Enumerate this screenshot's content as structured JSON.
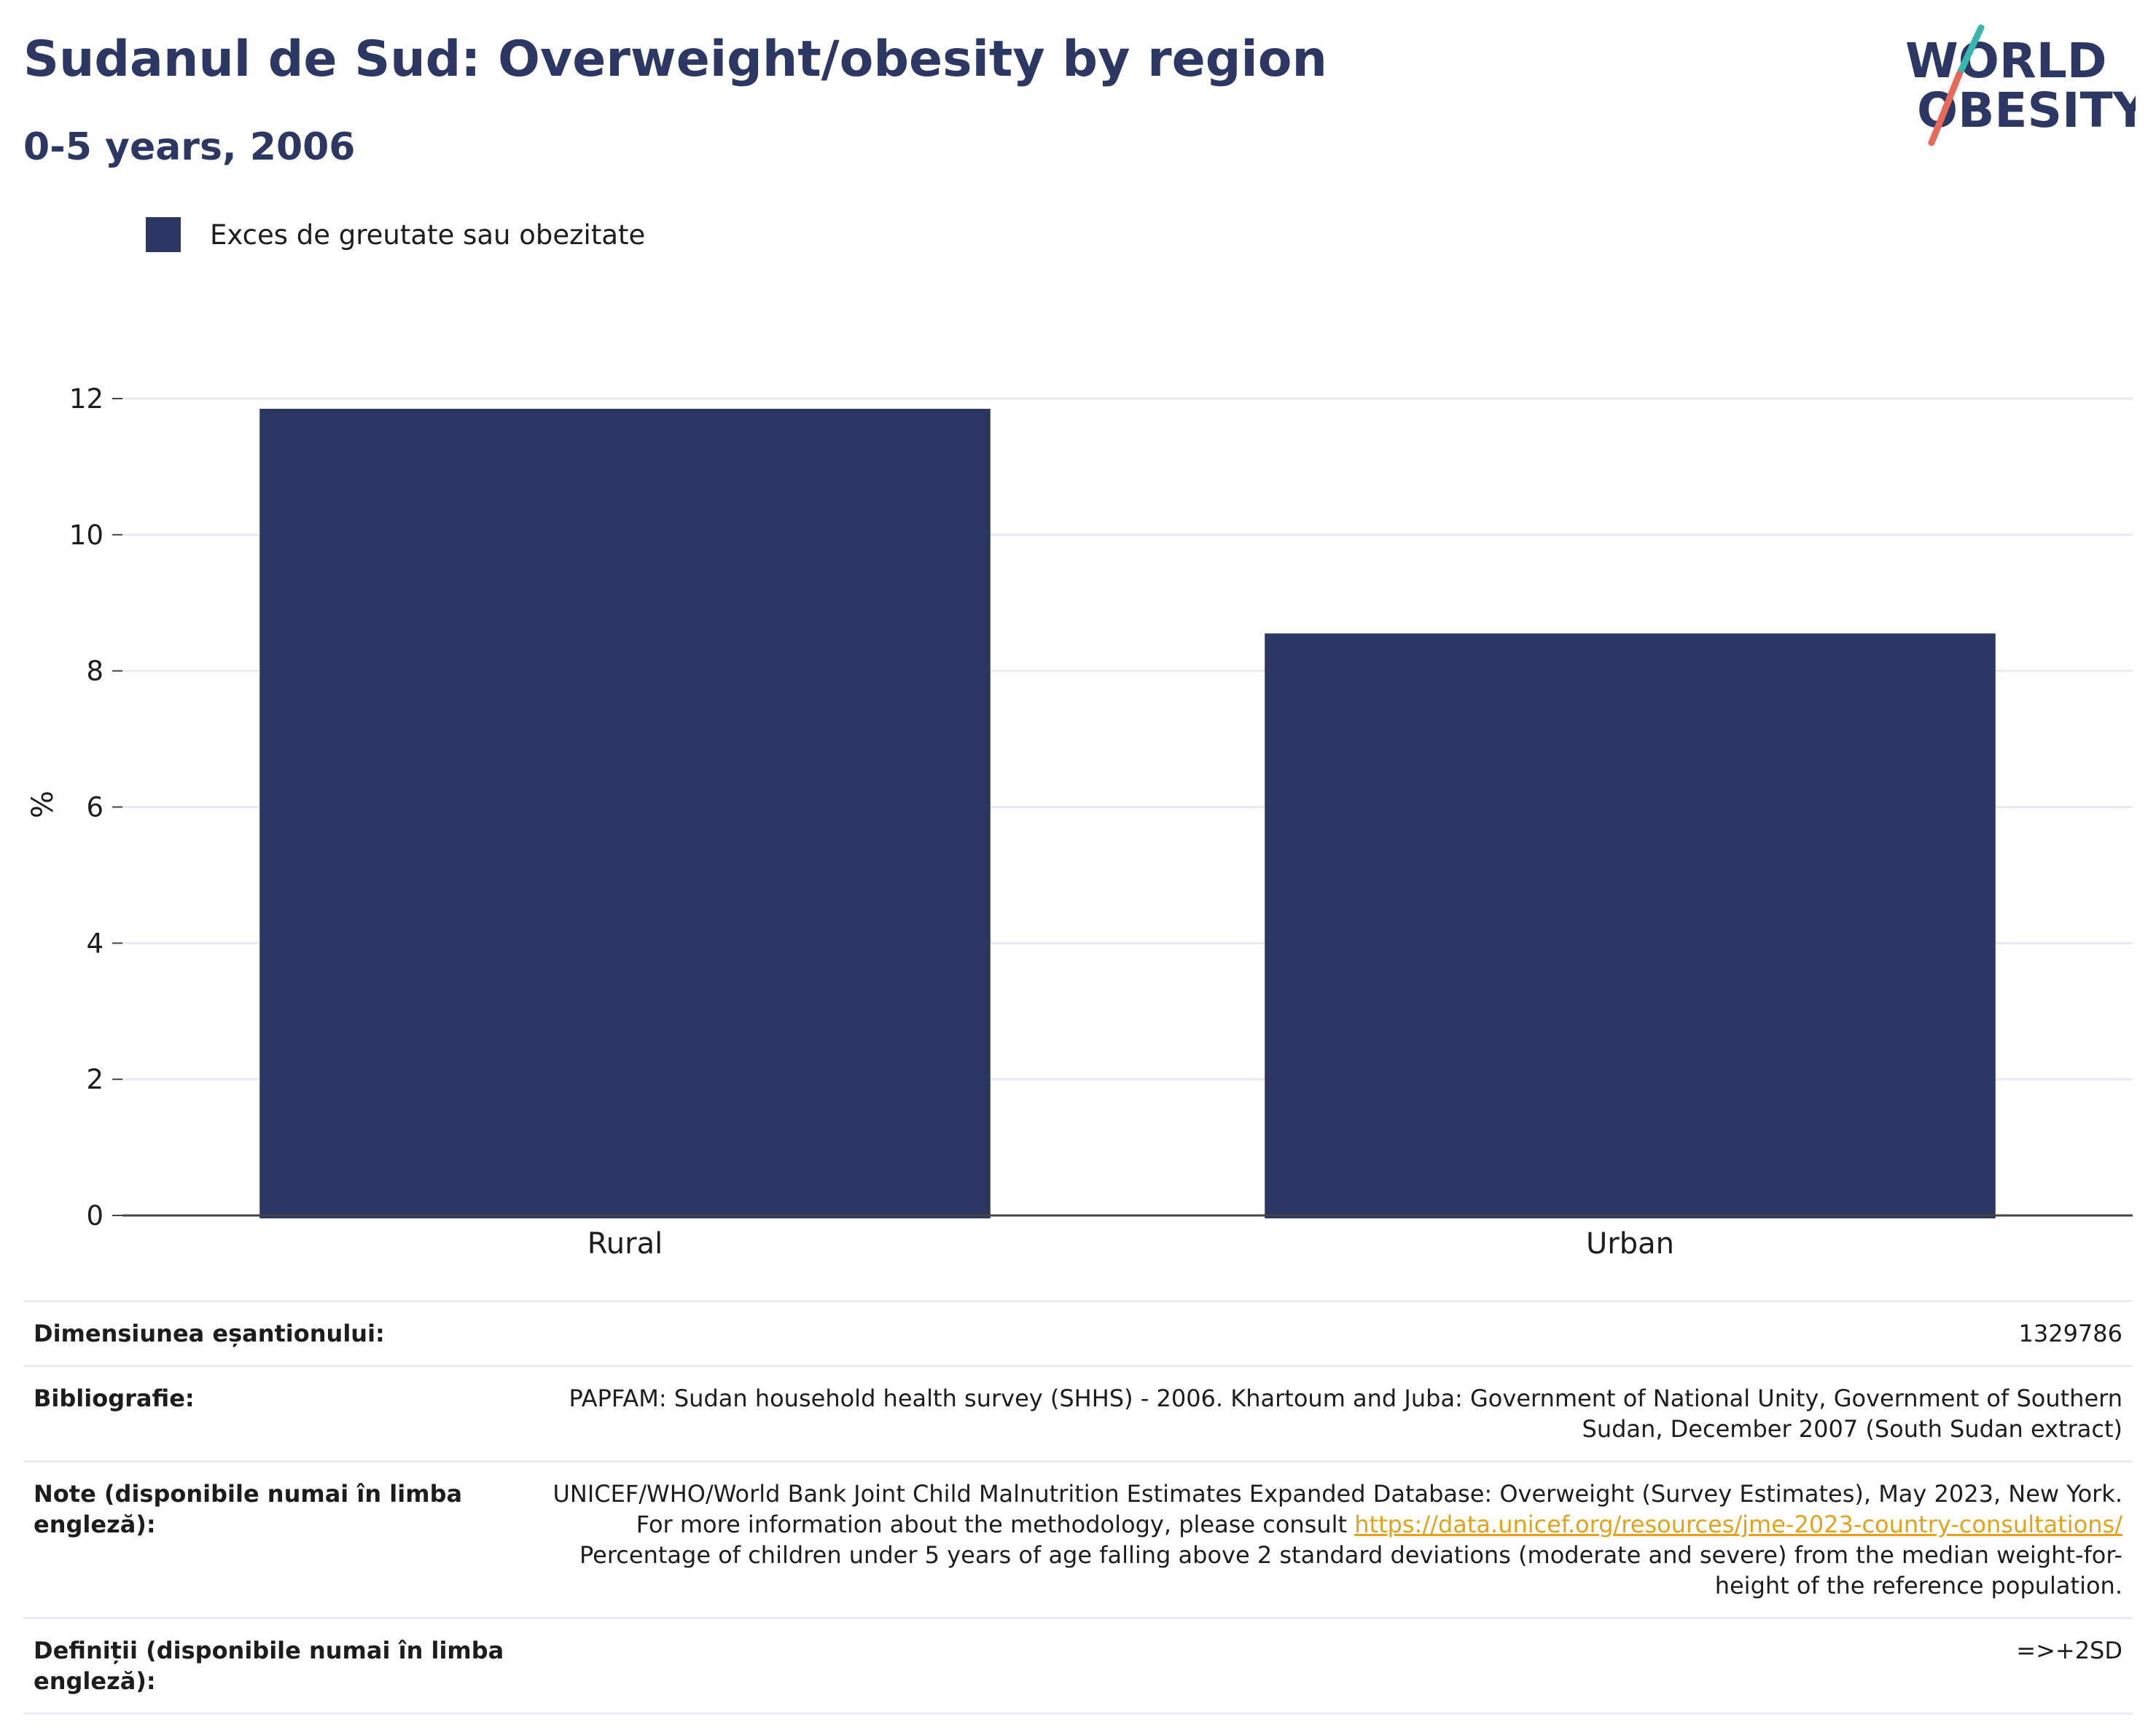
{
  "header": {
    "title": "Sudanul de Sud: Overweight/obesity by region",
    "subtitle": "0-5 years, 2006"
  },
  "logo": {
    "line1": "WORLD",
    "line2": "OBESITY",
    "text_color": "#2c3763",
    "slash_colors": [
      "#3bb5b0",
      "#e8685a"
    ]
  },
  "colors": {
    "bar": "#2b3662",
    "title": "#2c3763",
    "gridline": "#e9e9ef",
    "axis": "#444444"
  },
  "chart_data": {
    "type": "bar",
    "categories": [
      "Rural",
      "Urban"
    ],
    "series": [
      {
        "name": "Exces de greutate sau obezitate",
        "values": [
          11.85,
          8.55
        ],
        "color": "#2b3662"
      }
    ],
    "ylabel": "%",
    "xlabel": "",
    "ylim": [
      0,
      12.5
    ],
    "yticks": [
      0,
      2,
      4,
      6,
      8,
      10,
      12
    ],
    "grid": true,
    "legend_position": "top-left"
  },
  "meta": {
    "sample_size_label": "Dimensiunea eșantionului:",
    "sample_size_value": "1329786",
    "bibliography_label": "Bibliografie:",
    "bibliography_value": "PAPFAM: Sudan household health survey (SHHS) - 2006. Khartoum and Juba: Government of National Unity, Government of Southern Sudan, December 2007 (South Sudan extract)",
    "notes_label": "Note (disponibile numai în limba engleză):",
    "notes_text_before": "UNICEF/WHO/World Bank Joint Child Malnutrition Estimates Expanded Database: Overweight (Survey Estimates), May 2023, New York. For more information about the methodology, please consult ",
    "notes_link": "https://data.unicef.org/resources/jme-2023-country-consultations/",
    "notes_text_after": " Percentage of children under 5 years of age falling above 2 standard deviations (moderate and severe) from the median weight-for-height of the reference population.",
    "definitions_label": "Definiții (disponibile numai în limba engleză):",
    "definitions_value": "=>+2SD"
  }
}
